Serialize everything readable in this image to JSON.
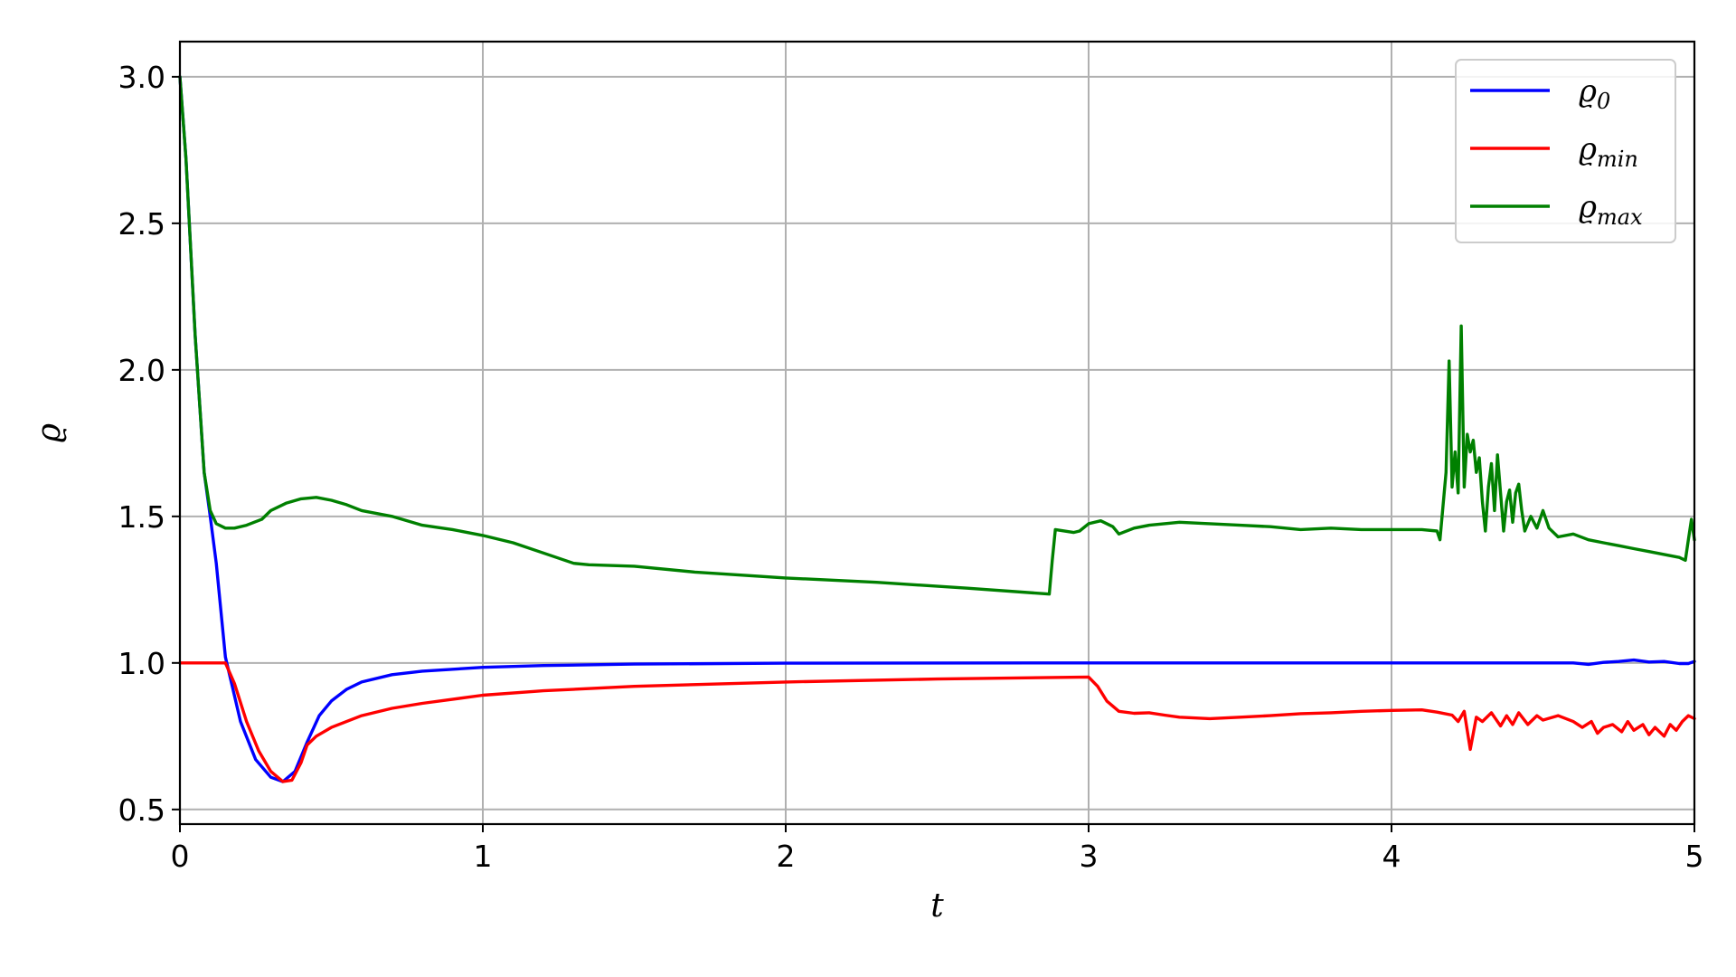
{
  "chart_data": {
    "type": "line",
    "title": "",
    "xlabel": "t",
    "ylabel": "ϱ",
    "xlim": [
      0,
      5
    ],
    "ylim": [
      0.45,
      3.12
    ],
    "grid": true,
    "legend_position": "top-right",
    "x_ticks": [
      0,
      1,
      2,
      3,
      4,
      5
    ],
    "x_tick_labels": [
      "0",
      "1",
      "2",
      "3",
      "4",
      "5"
    ],
    "y_ticks": [
      0.5,
      1.0,
      1.5,
      2.0,
      2.5,
      3.0
    ],
    "y_tick_labels": [
      "0.5",
      "1.0",
      "1.5",
      "2.0",
      "2.5",
      "3.0"
    ],
    "series": [
      {
        "name": "ϱ0",
        "legend_base": "ϱ",
        "legend_sub": "0",
        "color": "#0000ff",
        "points": [
          [
            0,
            3.0
          ],
          [
            0.02,
            2.72
          ],
          [
            0.05,
            2.12
          ],
          [
            0.08,
            1.65
          ],
          [
            0.1,
            1.5
          ],
          [
            0.12,
            1.34
          ],
          [
            0.15,
            1.02
          ],
          [
            0.2,
            0.8
          ],
          [
            0.25,
            0.67
          ],
          [
            0.3,
            0.61
          ],
          [
            0.34,
            0.595
          ],
          [
            0.38,
            0.63
          ],
          [
            0.42,
            0.73
          ],
          [
            0.46,
            0.82
          ],
          [
            0.5,
            0.87
          ],
          [
            0.55,
            0.91
          ],
          [
            0.6,
            0.935
          ],
          [
            0.7,
            0.96
          ],
          [
            0.8,
            0.972
          ],
          [
            1.0,
            0.985
          ],
          [
            1.2,
            0.991
          ],
          [
            1.5,
            0.996
          ],
          [
            2.0,
            0.999
          ],
          [
            3.0,
            1.0
          ],
          [
            4.0,
            1.0
          ],
          [
            4.5,
            1.0
          ],
          [
            4.6,
            1.0
          ],
          [
            4.65,
            0.995
          ],
          [
            4.7,
            1.002
          ],
          [
            4.75,
            1.005
          ],
          [
            4.8,
            1.01
          ],
          [
            4.85,
            1.003
          ],
          [
            4.9,
            1.005
          ],
          [
            4.95,
            0.998
          ],
          [
            4.98,
            0.998
          ],
          [
            5.0,
            1.005
          ]
        ]
      },
      {
        "name": "ϱmin",
        "legend_base": "ϱ",
        "legend_sub": "min",
        "color": "#ff0000",
        "points": [
          [
            0,
            1.0
          ],
          [
            0.15,
            1.0
          ],
          [
            0.18,
            0.93
          ],
          [
            0.22,
            0.8
          ],
          [
            0.26,
            0.7
          ],
          [
            0.3,
            0.63
          ],
          [
            0.34,
            0.595
          ],
          [
            0.37,
            0.6
          ],
          [
            0.4,
            0.66
          ],
          [
            0.42,
            0.72
          ],
          [
            0.45,
            0.75
          ],
          [
            0.5,
            0.78
          ],
          [
            0.6,
            0.82
          ],
          [
            0.7,
            0.845
          ],
          [
            0.8,
            0.862
          ],
          [
            1.0,
            0.89
          ],
          [
            1.2,
            0.905
          ],
          [
            1.5,
            0.92
          ],
          [
            2.0,
            0.935
          ],
          [
            2.5,
            0.945
          ],
          [
            3.0,
            0.952
          ],
          [
            3.03,
            0.92
          ],
          [
            3.06,
            0.87
          ],
          [
            3.1,
            0.835
          ],
          [
            3.15,
            0.828
          ],
          [
            3.2,
            0.83
          ],
          [
            3.25,
            0.822
          ],
          [
            3.3,
            0.815
          ],
          [
            3.4,
            0.81
          ],
          [
            3.5,
            0.815
          ],
          [
            3.6,
            0.82
          ],
          [
            3.7,
            0.827
          ],
          [
            3.8,
            0.83
          ],
          [
            3.9,
            0.835
          ],
          [
            4.0,
            0.838
          ],
          [
            4.1,
            0.84
          ],
          [
            4.15,
            0.832
          ],
          [
            4.2,
            0.822
          ],
          [
            4.22,
            0.8
          ],
          [
            4.24,
            0.835
          ],
          [
            4.26,
            0.705
          ],
          [
            4.28,
            0.815
          ],
          [
            4.3,
            0.8
          ],
          [
            4.33,
            0.83
          ],
          [
            4.36,
            0.785
          ],
          [
            4.38,
            0.82
          ],
          [
            4.4,
            0.79
          ],
          [
            4.42,
            0.83
          ],
          [
            4.45,
            0.79
          ],
          [
            4.48,
            0.82
          ],
          [
            4.5,
            0.805
          ],
          [
            4.55,
            0.82
          ],
          [
            4.6,
            0.8
          ],
          [
            4.63,
            0.78
          ],
          [
            4.66,
            0.8
          ],
          [
            4.68,
            0.76
          ],
          [
            4.7,
            0.78
          ],
          [
            4.73,
            0.79
          ],
          [
            4.76,
            0.765
          ],
          [
            4.78,
            0.8
          ],
          [
            4.8,
            0.77
          ],
          [
            4.83,
            0.79
          ],
          [
            4.85,
            0.755
          ],
          [
            4.87,
            0.78
          ],
          [
            4.9,
            0.75
          ],
          [
            4.92,
            0.79
          ],
          [
            4.94,
            0.77
          ],
          [
            4.96,
            0.8
          ],
          [
            4.98,
            0.82
          ],
          [
            5.0,
            0.81
          ]
        ]
      },
      {
        "name": "ϱmax",
        "legend_base": "ϱ",
        "legend_sub": "max",
        "color": "#008000",
        "points": [
          [
            0,
            3.0
          ],
          [
            0.02,
            2.72
          ],
          [
            0.05,
            2.12
          ],
          [
            0.08,
            1.65
          ],
          [
            0.1,
            1.52
          ],
          [
            0.12,
            1.475
          ],
          [
            0.15,
            1.46
          ],
          [
            0.18,
            1.46
          ],
          [
            0.22,
            1.47
          ],
          [
            0.27,
            1.49
          ],
          [
            0.3,
            1.52
          ],
          [
            0.35,
            1.545
          ],
          [
            0.4,
            1.56
          ],
          [
            0.45,
            1.565
          ],
          [
            0.5,
            1.555
          ],
          [
            0.55,
            1.54
          ],
          [
            0.6,
            1.52
          ],
          [
            0.7,
            1.5
          ],
          [
            0.8,
            1.47
          ],
          [
            0.9,
            1.455
          ],
          [
            1.0,
            1.435
          ],
          [
            1.1,
            1.41
          ],
          [
            1.2,
            1.375
          ],
          [
            1.3,
            1.34
          ],
          [
            1.35,
            1.335
          ],
          [
            1.5,
            1.33
          ],
          [
            1.7,
            1.31
          ],
          [
            2.0,
            1.29
          ],
          [
            2.3,
            1.275
          ],
          [
            2.6,
            1.255
          ],
          [
            2.87,
            1.235
          ],
          [
            2.88,
            1.35
          ],
          [
            2.89,
            1.455
          ],
          [
            2.95,
            1.445
          ],
          [
            2.97,
            1.45
          ],
          [
            3.0,
            1.475
          ],
          [
            3.04,
            1.485
          ],
          [
            3.08,
            1.465
          ],
          [
            3.1,
            1.44
          ],
          [
            3.15,
            1.46
          ],
          [
            3.2,
            1.47
          ],
          [
            3.3,
            1.48
          ],
          [
            3.4,
            1.475
          ],
          [
            3.5,
            1.47
          ],
          [
            3.6,
            1.465
          ],
          [
            3.7,
            1.455
          ],
          [
            3.8,
            1.46
          ],
          [
            3.9,
            1.455
          ],
          [
            4.0,
            1.455
          ],
          [
            4.1,
            1.455
          ],
          [
            4.15,
            1.45
          ],
          [
            4.16,
            1.42
          ],
          [
            4.18,
            1.65
          ],
          [
            4.19,
            2.03
          ],
          [
            4.2,
            1.6
          ],
          [
            4.21,
            1.72
          ],
          [
            4.22,
            1.58
          ],
          [
            4.23,
            2.15
          ],
          [
            4.24,
            1.6
          ],
          [
            4.25,
            1.78
          ],
          [
            4.26,
            1.72
          ],
          [
            4.27,
            1.76
          ],
          [
            4.28,
            1.65
          ],
          [
            4.29,
            1.7
          ],
          [
            4.3,
            1.55
          ],
          [
            4.31,
            1.45
          ],
          [
            4.32,
            1.6
          ],
          [
            4.33,
            1.68
          ],
          [
            4.34,
            1.52
          ],
          [
            4.35,
            1.71
          ],
          [
            4.36,
            1.58
          ],
          [
            4.37,
            1.45
          ],
          [
            4.38,
            1.55
          ],
          [
            4.39,
            1.59
          ],
          [
            4.4,
            1.48
          ],
          [
            4.41,
            1.58
          ],
          [
            4.42,
            1.61
          ],
          [
            4.43,
            1.52
          ],
          [
            4.44,
            1.45
          ],
          [
            4.46,
            1.5
          ],
          [
            4.48,
            1.46
          ],
          [
            4.5,
            1.52
          ],
          [
            4.52,
            1.46
          ],
          [
            4.55,
            1.43
          ],
          [
            4.6,
            1.44
          ],
          [
            4.65,
            1.42
          ],
          [
            4.7,
            1.41
          ],
          [
            4.75,
            1.4
          ],
          [
            4.8,
            1.39
          ],
          [
            4.85,
            1.38
          ],
          [
            4.9,
            1.37
          ],
          [
            4.95,
            1.36
          ],
          [
            4.97,
            1.35
          ],
          [
            4.98,
            1.42
          ],
          [
            4.99,
            1.49
          ],
          [
            5.0,
            1.42
          ]
        ]
      }
    ]
  }
}
